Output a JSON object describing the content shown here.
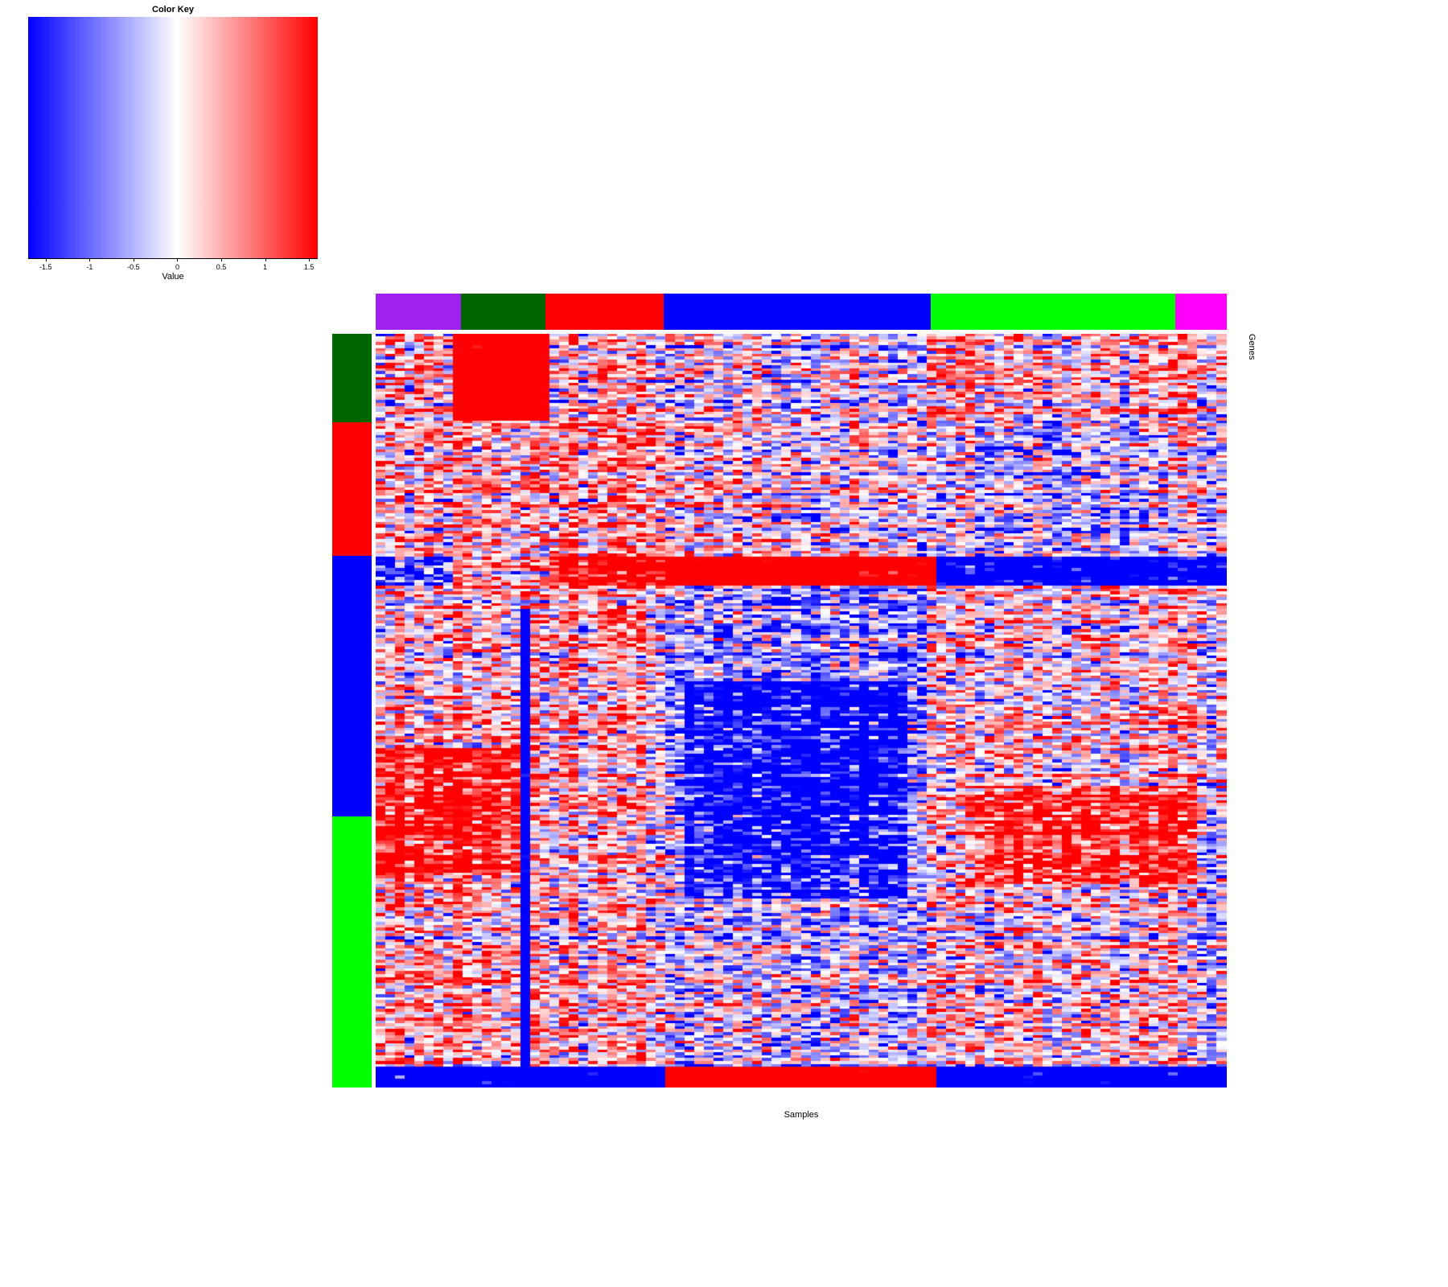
{
  "chart_data": {
    "type": "heatmap",
    "title": "",
    "xlabel": "Samples",
    "ylabel": "Genes",
    "value_range": [
      -1.6,
      1.6
    ],
    "color_key": {
      "title": "Color Key",
      "axis_label": "Value",
      "ticks": [
        "-1.5",
        "-1",
        "-0.5",
        "0",
        "0.5",
        "1",
        "1.5"
      ],
      "tick_values": [
        -1.5,
        -1,
        -0.5,
        0,
        0.5,
        1,
        1.5
      ],
      "axis_min": -1.7,
      "axis_max": 1.6,
      "low_color": "#0000FF",
      "mid_color": "#FFFFFF",
      "high_color": "#FF0000"
    },
    "n_rows": 260,
    "n_cols": 88,
    "col_side_colors": [
      {
        "name": "purple-group",
        "color": "#A020F0",
        "fraction": 0.1
      },
      {
        "name": "dark-green-group",
        "color": "#006400",
        "fraction": 0.099
      },
      {
        "name": "red-group",
        "color": "#FF0000",
        "fraction": 0.139
      },
      {
        "name": "blue-group",
        "color": "#0000FF",
        "fraction": 0.314
      },
      {
        "name": "green-group",
        "color": "#00FF00",
        "fraction": 0.288
      },
      {
        "name": "magenta-group",
        "color": "#FF00FF",
        "fraction": 0.06
      }
    ],
    "row_side_colors": [
      {
        "name": "dark-green-group",
        "color": "#006400",
        "fraction": 0.117
      },
      {
        "name": "red-group",
        "color": "#FF0000",
        "fraction": 0.178
      },
      {
        "name": "blue-group",
        "color": "#0000FF",
        "fraction": 0.345
      },
      {
        "name": "green-group",
        "color": "#00FF00",
        "fraction": 0.36
      }
    ],
    "block_bias": [
      [
        0.15,
        0.6,
        0.1,
        -0.1,
        0.2,
        0.1
      ],
      [
        0.35,
        0.4,
        0.45,
        0.05,
        -0.25,
        -0.15
      ],
      [
        0.3,
        0.35,
        0.3,
        -0.45,
        0.15,
        0.05
      ],
      [
        0.4,
        0.3,
        0.1,
        -0.2,
        0.05,
        -0.3
      ]
    ],
    "features": [
      {
        "name": "top-left-red-block",
        "rows": [
          0.0,
          0.115
        ],
        "cols": [
          0.095,
          0.2
        ],
        "bias": 2.6
      },
      {
        "name": "mid-red-band-core",
        "rows": [
          0.298,
          0.336
        ],
        "cols": [
          0.34,
          0.655
        ],
        "bias": 3.0
      },
      {
        "name": "mid-red-band-left",
        "rows": [
          0.298,
          0.336
        ],
        "cols": [
          0.2,
          0.34
        ],
        "bias": 1.2
      },
      {
        "name": "mid-band-right-blue",
        "rows": [
          0.298,
          0.336
        ],
        "cols": [
          0.655,
          1.0
        ],
        "bias": -2.2
      },
      {
        "name": "mid-band-far-left-blue",
        "rows": [
          0.298,
          0.336
        ],
        "cols": [
          0.0,
          0.095
        ],
        "bias": -1.2
      },
      {
        "name": "vertical-blue-stripe",
        "rows": [
          0.365,
          1.0
        ],
        "cols": [
          0.172,
          0.184
        ],
        "bias": -3.5
      },
      {
        "name": "center-blue-patch",
        "rows": [
          0.46,
          0.75
        ],
        "cols": [
          0.36,
          0.62
        ],
        "bias": -1.1
      },
      {
        "name": "left-red-patch",
        "rows": [
          0.55,
          0.72
        ],
        "cols": [
          0.0,
          0.185
        ],
        "bias": 1.0
      },
      {
        "name": "right-red-patch",
        "rows": [
          0.6,
          0.73
        ],
        "cols": [
          0.7,
          0.97
        ],
        "bias": 1.0
      },
      {
        "name": "bottom-red-block",
        "rows": [
          0.972,
          1.0
        ],
        "cols": [
          0.34,
          0.655
        ],
        "bias": 3.2
      },
      {
        "name": "bottom-left-blue-block",
        "rows": [
          0.972,
          1.0
        ],
        "cols": [
          0.0,
          0.34
        ],
        "bias": -2.6
      },
      {
        "name": "bottom-right-blue-block",
        "rows": [
          0.972,
          1.0
        ],
        "cols": [
          0.655,
          1.0
        ],
        "bias": -2.6
      }
    ],
    "render": {
      "seed": 42,
      "row_weight": 0.7,
      "col_weight": 0.45,
      "cell_weight": 1.5,
      "saturate_at": 1.25
    }
  }
}
